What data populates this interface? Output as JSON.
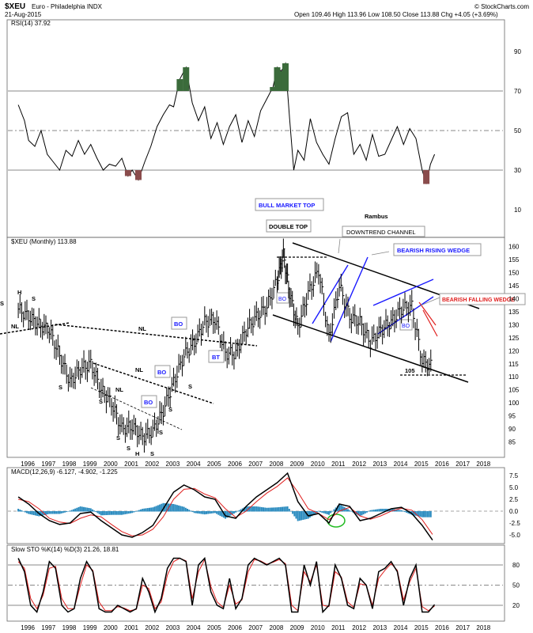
{
  "header": {
    "symbol": "$XEU",
    "name": "Euro - Philadelphia INDX",
    "date": "21-Aug-2015",
    "ohlc": "Open 109.46  High 113.96  Low 108.50  Close 113.88  Chg +4.05 (+3.69%)",
    "copyright": "© StockCharts.com"
  },
  "colors": {
    "price_bar": "#000000",
    "trend_line": "#000000",
    "wedge_line": "#1a1aff",
    "falling_wedge": "#e0201f",
    "rsi_over": "#3b6b3b",
    "rsi_under": "#8a4c4c",
    "macd_hist": "#2a8bbf",
    "macd_signal": "#e0201f",
    "sto_d": "#e0201f",
    "circle": "#22bb22"
  },
  "chart_data": [
    {
      "type": "line",
      "title": "RSI(14) 37.92",
      "ylim": [
        0,
        100
      ],
      "yticks": [
        "90",
        "70",
        "50",
        "30",
        "10"
      ],
      "reference_levels": [
        70,
        50,
        30
      ],
      "x": [
        1995.5,
        1995.8,
        1996.0,
        1996.3,
        1996.6,
        1996.9,
        1997.2,
        1997.5,
        1997.8,
        1998.1,
        1998.4,
        1998.7,
        1999.0,
        1999.3,
        1999.6,
        1999.9,
        2000.2,
        2000.5,
        2000.8,
        2001.0,
        2001.3,
        2001.6,
        2001.9,
        2002.2,
        2002.5,
        2002.8,
        2003.0,
        2003.3,
        2003.6,
        2003.9,
        2004.2,
        2004.5,
        2004.8,
        2005.1,
        2005.4,
        2005.7,
        2006.0,
        2006.3,
        2006.6,
        2006.9,
        2007.2,
        2007.5,
        2007.8,
        2008.0,
        2008.2,
        2008.4,
        2008.6,
        2008.8,
        2009.0,
        2009.3,
        2009.6,
        2009.9,
        2010.2,
        2010.5,
        2010.8,
        2011.1,
        2011.4,
        2011.7,
        2012.0,
        2012.3,
        2012.6,
        2012.9,
        2013.2,
        2013.5,
        2013.8,
        2014.1,
        2014.4,
        2014.7,
        2015.0,
        2015.2,
        2015.4,
        2015.6
      ],
      "values": [
        63,
        55,
        45,
        42,
        50,
        38,
        34,
        30,
        40,
        37,
        45,
        38,
        43,
        36,
        30,
        33,
        32,
        36,
        27,
        30,
        25,
        34,
        42,
        52,
        58,
        63,
        62,
        76,
        82,
        64,
        55,
        62,
        46,
        54,
        43,
        52,
        58,
        44,
        55,
        47,
        60,
        66,
        72,
        82,
        80,
        84,
        56,
        30,
        40,
        35,
        56,
        44,
        38,
        33,
        46,
        57,
        59,
        38,
        43,
        35,
        48,
        37,
        38,
        45,
        52,
        43,
        51,
        46,
        30,
        23,
        33,
        38
      ]
    },
    {
      "type": "bar",
      "title": "$XEU (Monthly) 113.88",
      "ylim": [
        80,
        162
      ],
      "yticks": [
        "160",
        "155",
        "150",
        "145",
        "140",
        "135",
        "130",
        "125",
        "120",
        "115",
        "110",
        "105",
        "100",
        "95",
        "90",
        "85"
      ],
      "xlabels": [
        "1996",
        "1997",
        "1998",
        "1999",
        "2000",
        "2001",
        "2002",
        "2003",
        "2004",
        "2005",
        "2006",
        "2007",
        "2008",
        "2009",
        "2010",
        "2011",
        "2012",
        "2013",
        "2014",
        "2015",
        "2016",
        "2017",
        "2018"
      ],
      "x": [
        1995.5,
        1996.0,
        1996.5,
        1997.0,
        1997.5,
        1998.0,
        1998.5,
        1999.0,
        1999.5,
        2000.0,
        2000.5,
        2001.0,
        2001.5,
        2002.0,
        2002.5,
        2003.0,
        2003.5,
        2004.0,
        2004.5,
        2005.0,
        2005.5,
        2006.0,
        2006.5,
        2007.0,
        2007.5,
        2008.0,
        2008.3,
        2008.6,
        2009.0,
        2009.5,
        2010.0,
        2010.5,
        2011.0,
        2011.5,
        2012.0,
        2012.5,
        2013.0,
        2013.5,
        2014.0,
        2014.5,
        2015.0,
        2015.5
      ],
      "values": [
        136,
        133,
        130,
        128,
        118,
        108,
        113,
        115,
        105,
        100,
        90,
        91,
        87,
        89,
        97,
        108,
        118,
        123,
        131,
        132,
        119,
        119,
        128,
        133,
        137,
        147,
        157,
        142,
        129,
        142,
        151,
        125,
        145,
        133,
        131,
        123,
        128,
        131,
        136,
        137,
        116,
        113.88
      ],
      "annotations": [
        "BULL MARKET TOP",
        "DOUBLE TOP",
        "Rambus",
        "DOWNTREND CHANNEL",
        "BEARISH RISING WEDGE",
        "BEARISH FALLING WEDGE",
        "BO",
        "BO",
        "BO",
        "BO",
        "BO",
        "BT",
        "NL",
        "NL",
        "NL",
        "NL",
        "H",
        "S",
        "S",
        "S",
        "S",
        "S",
        "S",
        "S",
        "S",
        "H",
        "S",
        "S",
        "105"
      ]
    },
    {
      "type": "line",
      "title": "MACD(12,26,9) -6.127, -4.902, -1.225",
      "ylim": [
        -6.5,
        8
      ],
      "yticks": [
        "7.5",
        "5.0",
        "2.5",
        "0.0",
        "-2.5",
        "-5.0"
      ],
      "x": [
        1995.5,
        1996.0,
        1996.5,
        1997.0,
        1997.5,
        1998.0,
        1998.5,
        1999.0,
        1999.5,
        2000.0,
        2000.5,
        2001.0,
        2001.5,
        2002.0,
        2002.5,
        2003.0,
        2003.5,
        2004.0,
        2004.5,
        2005.0,
        2005.5,
        2006.0,
        2006.5,
        2007.0,
        2007.5,
        2008.0,
        2008.5,
        2009.0,
        2009.5,
        2010.0,
        2010.5,
        2011.0,
        2011.5,
        2012.0,
        2012.5,
        2013.0,
        2013.5,
        2014.0,
        2014.5,
        2015.0,
        2015.5
      ],
      "series": [
        {
          "values": [
            3,
            1.5,
            -0.5,
            -2,
            -2.8,
            -2.5,
            -0.5,
            -0.2,
            -2,
            -3.5,
            -5,
            -5.5,
            -4.5,
            -3,
            0.5,
            4,
            5.5,
            4.5,
            3,
            2.5,
            -1,
            -1.5,
            1,
            3,
            4.5,
            6,
            8,
            2,
            -1,
            -0.5,
            -2.5,
            1.5,
            1,
            -2,
            -1.5,
            -0.5,
            0.5,
            0.8,
            -0.5,
            -3,
            -6.1
          ]
        },
        {
          "values": [
            2.5,
            2,
            0.5,
            -1.5,
            -2.3,
            -2.6,
            -1.5,
            -0.8,
            -1.2,
            -2.8,
            -4.3,
            -5.2,
            -5,
            -3.8,
            -1.2,
            2.5,
            4.6,
            4.8,
            3.6,
            2.8,
            0.5,
            -1.3,
            0,
            2,
            3.8,
            5.2,
            7,
            4,
            0.5,
            -0.5,
            -1.8,
            0,
            0.8,
            -1,
            -1.7,
            -1,
            0,
            0.6,
            0.2,
            -1.8,
            -4.9
          ]
        }
      ]
    },
    {
      "type": "line",
      "title": "Slow STO %K(14) %D(3) 21.26, 18.81",
      "ylim": [
        0,
        100
      ],
      "yticks": [
        "80",
        "50",
        "20"
      ],
      "xlabels": [
        "1996",
        "1997",
        "1998",
        "1999",
        "2000",
        "2001",
        "2002",
        "2003",
        "2004",
        "2005",
        "2006",
        "2007",
        "2008",
        "2009",
        "2010",
        "2011",
        "2012",
        "2013",
        "2014",
        "2015",
        "2016",
        "2017",
        "2018"
      ],
      "x": [
        1995.5,
        1995.8,
        1996.1,
        1996.4,
        1996.7,
        1997.0,
        1997.3,
        1997.6,
        1997.9,
        1998.2,
        1998.5,
        1998.8,
        1999.1,
        1999.4,
        1999.7,
        2000.0,
        2000.3,
        2000.6,
        2000.9,
        2001.2,
        2001.5,
        2001.8,
        2002.1,
        2002.4,
        2002.7,
        2003.0,
        2003.3,
        2003.6,
        2003.9,
        2004.2,
        2004.5,
        2004.8,
        2005.1,
        2005.4,
        2005.7,
        2006.0,
        2006.3,
        2006.6,
        2006.9,
        2007.2,
        2007.5,
        2007.8,
        2008.1,
        2008.4,
        2008.7,
        2009.0,
        2009.3,
        2009.6,
        2009.9,
        2010.2,
        2010.5,
        2010.8,
        2011.1,
        2011.4,
        2011.7,
        2012.0,
        2012.3,
        2012.6,
        2012.9,
        2013.2,
        2013.5,
        2013.8,
        2014.1,
        2014.4,
        2014.7,
        2015.0,
        2015.3,
        2015.6
      ],
      "series": [
        {
          "values": [
            90,
            70,
            20,
            10,
            40,
            85,
            75,
            20,
            10,
            15,
            60,
            85,
            70,
            15,
            10,
            10,
            20,
            15,
            10,
            15,
            60,
            40,
            10,
            30,
            75,
            90,
            90,
            85,
            20,
            80,
            90,
            40,
            20,
            15,
            60,
            15,
            30,
            80,
            90,
            85,
            80,
            85,
            90,
            80,
            10,
            10,
            80,
            50,
            85,
            10,
            20,
            80,
            60,
            20,
            15,
            60,
            50,
            15,
            70,
            75,
            85,
            70,
            20,
            60,
            80,
            10,
            10,
            21
          ]
        },
        {
          "values": [
            85,
            75,
            30,
            15,
            35,
            75,
            78,
            30,
            15,
            15,
            50,
            80,
            72,
            25,
            12,
            12,
            18,
            16,
            12,
            14,
            50,
            45,
            15,
            25,
            65,
            85,
            90,
            86,
            30,
            70,
            88,
            48,
            25,
            17,
            50,
            22,
            28,
            70,
            88,
            86,
            81,
            84,
            88,
            82,
            20,
            12,
            70,
            55,
            80,
            20,
            18,
            70,
            62,
            25,
            17,
            52,
            50,
            20,
            60,
            72,
            82,
            72,
            28,
            55,
            75,
            18,
            12,
            19
          ]
        }
      ]
    }
  ]
}
